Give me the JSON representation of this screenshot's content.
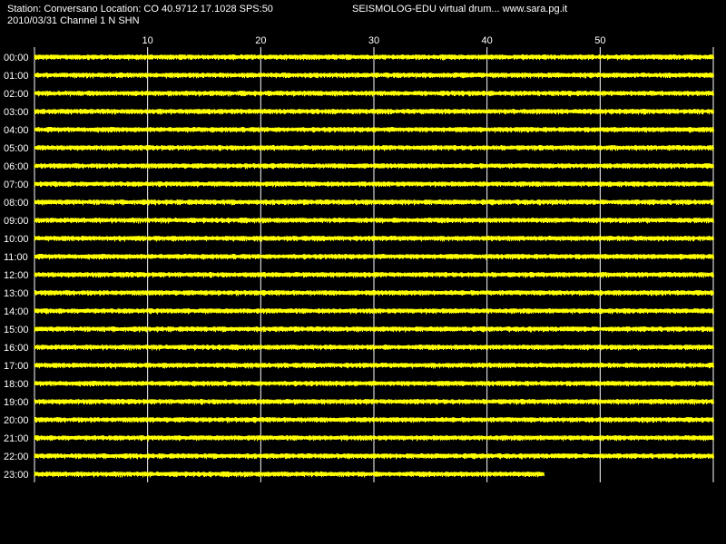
{
  "header": {
    "station_line": "Station: Conversano Location: CO 40.9712 17.1028 SPS:50",
    "credit_line": "SEISMOLOG-EDU virtual drum... www.sara.pg.it",
    "date_channel_line": "2010/03/31  Channel 1 N SHN"
  },
  "chart_data": {
    "type": "line",
    "title": "",
    "xlabel": "",
    "ylabel": "",
    "x_unit": "minutes",
    "xlim": [
      0,
      60
    ],
    "x_ticks": [
      10,
      20,
      30,
      40,
      50
    ],
    "grid": "vertical",
    "background_color": "#000000",
    "trace_color": "#ffff00",
    "grid_color": "#ffffff",
    "rows": [
      {
        "label": "00:00",
        "end_minute": 60
      },
      {
        "label": "01:00",
        "end_minute": 60
      },
      {
        "label": "02:00",
        "end_minute": 60
      },
      {
        "label": "03:00",
        "end_minute": 60
      },
      {
        "label": "04:00",
        "end_minute": 60
      },
      {
        "label": "05:00",
        "end_minute": 60
      },
      {
        "label": "06:00",
        "end_minute": 60
      },
      {
        "label": "07:00",
        "end_minute": 60
      },
      {
        "label": "08:00",
        "end_minute": 60
      },
      {
        "label": "09:00",
        "end_minute": 60
      },
      {
        "label": "10:00",
        "end_minute": 60
      },
      {
        "label": "11:00",
        "end_minute": 60
      },
      {
        "label": "12:00",
        "end_minute": 60
      },
      {
        "label": "13:00",
        "end_minute": 60
      },
      {
        "label": "14:00",
        "end_minute": 60
      },
      {
        "label": "15:00",
        "end_minute": 60
      },
      {
        "label": "16:00",
        "end_minute": 60
      },
      {
        "label": "17:00",
        "end_minute": 60
      },
      {
        "label": "18:00",
        "end_minute": 60
      },
      {
        "label": "19:00",
        "end_minute": 60
      },
      {
        "label": "20:00",
        "end_minute": 60
      },
      {
        "label": "21:00",
        "end_minute": 60
      },
      {
        "label": "22:00",
        "end_minute": 60
      },
      {
        "label": "23:00",
        "end_minute": 45
      }
    ]
  }
}
